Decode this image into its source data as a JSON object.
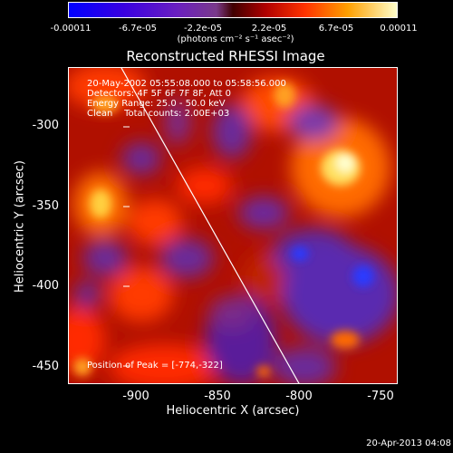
{
  "colorbar": {
    "ticks": [
      "-0.00011",
      "-6.7e-05",
      "-2.2e-05",
      "2.2e-05",
      "6.7e-05",
      "0.00011"
    ],
    "units": "(photons cm⁻² s⁻¹ asec⁻²)"
  },
  "title": "Reconstructed RHESSI Image",
  "info": {
    "line1": "20-May-2002 05:55:08.000 to 05:58:56.000",
    "line2": "Detectors: 4F 5F 6F 7F 8F, Att 0",
    "line3": "Energy Range: 25.0 - 50.0 keV",
    "line4": "Clean    Total counts: 2.00E+03",
    "peak": "Position of Peak = [-774,-322]"
  },
  "axes": {
    "xlabel": "Heliocentric X (arcsec)",
    "ylabel": "Heliocentric Y (arcsec)",
    "xticks": [
      "-900",
      "-850",
      "-800",
      "-750"
    ],
    "yticks": [
      "-300",
      "-350",
      "-400",
      "-450"
    ]
  },
  "timestamp": "20-Apr-2013 04:08",
  "colors": {
    "background": "#000000",
    "text": "#ffffff",
    "limb": "#ffffff"
  }
}
